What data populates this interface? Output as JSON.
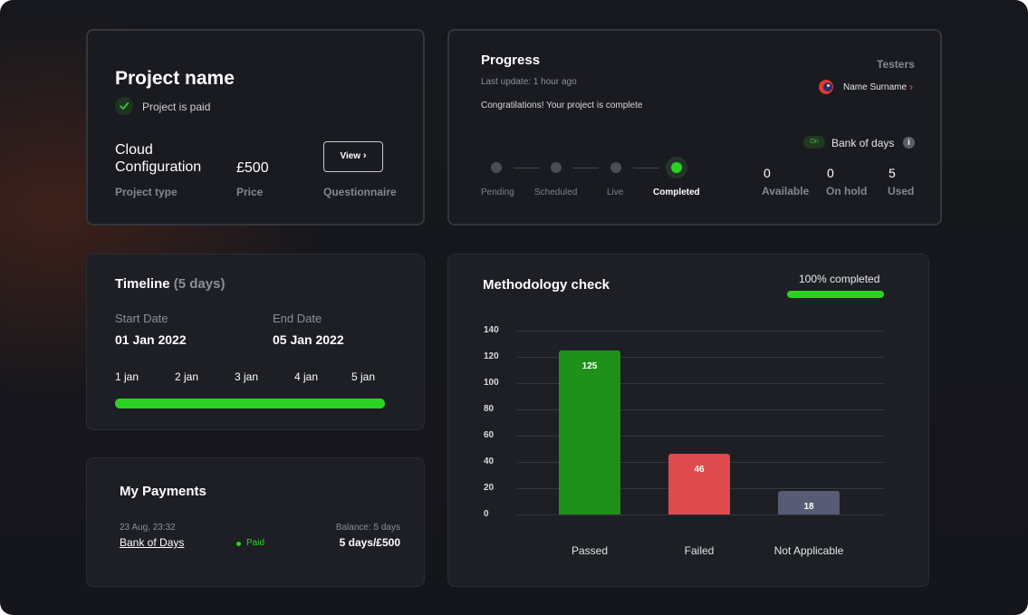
{
  "project": {
    "title": "Project name",
    "paid_status": "Project is paid",
    "type_value_line1": "Cloud",
    "type_value_line2": "Configuration",
    "type_label": "Project type",
    "price_value": "£500",
    "price_label": "Price",
    "view_button": "View",
    "questionnaire_label": "Questionnaire"
  },
  "progress": {
    "title": "Progress",
    "last_update": "Last update: 1 hour ago",
    "message": "Congratilations! Your project is complete",
    "testers_label": "Testers",
    "tester_name": "Name Surname",
    "steps": [
      "Pending",
      "Scheduled",
      "Live",
      "Completed"
    ],
    "active_step": 3,
    "toggle_label": "On",
    "bank_label": "Bank of days",
    "stats": [
      {
        "value": "0",
        "label": "Available"
      },
      {
        "value": "0",
        "label": "On hold"
      },
      {
        "value": "5",
        "label": "Used"
      }
    ]
  },
  "timeline": {
    "title": "Timeline",
    "duration": "(5 days)",
    "start_label": "Start Date",
    "start_value": "01 Jan 2022",
    "end_label": "End Date",
    "end_value": "05 Jan 2022",
    "ticks": [
      "1 jan",
      "2 jan",
      "3 jan",
      "4 jan",
      "5 jan"
    ],
    "progress_fraction": 1.0
  },
  "payments": {
    "title": "My Payments",
    "date": "23 Aug, 23:32",
    "item_name": "Bank of Days",
    "status": "Paid",
    "balance_label": "Balance: 5 days",
    "amount": "5 days/£500"
  },
  "methodology": {
    "title": "Methodology check",
    "completion_text": "100% completed",
    "completion_fraction": 1.0
  },
  "chart_data": {
    "type": "bar",
    "categories": [
      "Passed",
      "Failed",
      "Not Applicable"
    ],
    "values": [
      125,
      46,
      18
    ],
    "colors": [
      "#1f911a",
      "#de4b4f",
      "#575b73"
    ],
    "yticks": [
      0,
      20,
      40,
      60,
      80,
      100,
      120,
      140
    ],
    "ylim": [
      0,
      140
    ],
    "grid": true,
    "title": "",
    "xlabel": "",
    "ylabel": ""
  },
  "colors": {
    "accent_green": "#2ad321",
    "background": "#16171c",
    "card": "#1d1f25"
  }
}
